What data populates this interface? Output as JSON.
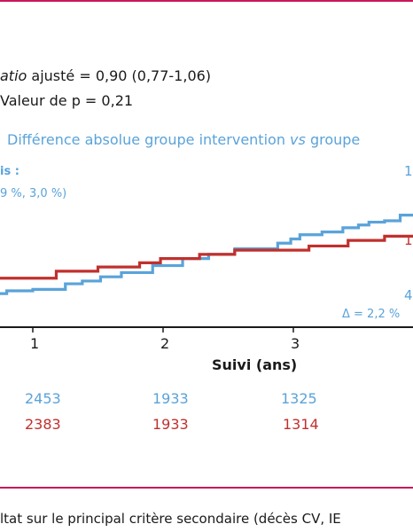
{
  "colors": {
    "frame": "#c8175d",
    "intervention": "#5aa3da",
    "control": "#c0302d",
    "axis": "#1a1a1a"
  },
  "stats": {
    "hr_prefix": "atio",
    "hr_rest": " ajusté = 0,90 (0,77-1,06)",
    "p_value": "Valeur de p = 0,21"
  },
  "subheading": "Différence absolue groupe intervention",
  "subheading_vs": "vs",
  "subheading_tail": " groupe",
  "annotations": {
    "top_left_1": "is :",
    "top_left_2": "9 %, 3,0 %)",
    "right_top_blue": "1",
    "right_mid_red": "1",
    "right_low_blue": "4",
    "delta": "Δ = 2,2 %"
  },
  "caption": "ltat sur le principal critère secondaire (décès CV, IE",
  "chart_data": {
    "type": "line",
    "xlabel": "Suivi (ans)",
    "ylabel": "",
    "xlim": [
      0.42,
      4.2
    ],
    "ylim": [
      0,
      1
    ],
    "x_ticks": [
      {
        "value": 1,
        "label": "1"
      },
      {
        "value": 2,
        "label": "2"
      },
      {
        "value": 3,
        "label": "3"
      }
    ],
    "series": [
      {
        "color": "#5aa3da",
        "step": true,
        "points": [
          [
            0.42,
            0.1
          ],
          [
            0.48,
            0.13
          ],
          [
            0.55,
            0.15
          ],
          [
            0.65,
            0.17
          ],
          [
            0.8,
            0.19
          ],
          [
            1.0,
            0.2
          ],
          [
            1.15,
            0.2
          ],
          [
            1.25,
            0.24
          ],
          [
            1.38,
            0.26
          ],
          [
            1.52,
            0.29
          ],
          [
            1.68,
            0.32
          ],
          [
            1.92,
            0.37
          ],
          [
            2.15,
            0.42
          ],
          [
            2.35,
            0.45
          ],
          [
            2.55,
            0.49
          ],
          [
            2.88,
            0.53
          ],
          [
            2.98,
            0.56
          ],
          [
            3.05,
            0.59
          ],
          [
            3.22,
            0.61
          ],
          [
            3.38,
            0.64
          ],
          [
            3.5,
            0.66
          ],
          [
            3.58,
            0.68
          ],
          [
            3.7,
            0.69
          ],
          [
            3.82,
            0.73
          ],
          [
            3.96,
            0.77
          ],
          [
            4.2,
            0.77
          ]
        ]
      },
      {
        "color": "#c0302d",
        "step": true,
        "points": [
          [
            0.42,
            0.16
          ],
          [
            0.52,
            0.2
          ],
          [
            0.68,
            0.28
          ],
          [
            1.0,
            0.28
          ],
          [
            1.18,
            0.33
          ],
          [
            1.5,
            0.36
          ],
          [
            1.82,
            0.39
          ],
          [
            1.98,
            0.42
          ],
          [
            2.28,
            0.45
          ],
          [
            2.55,
            0.48
          ],
          [
            3.05,
            0.48
          ],
          [
            3.12,
            0.51
          ],
          [
            3.42,
            0.55
          ],
          [
            3.7,
            0.58
          ],
          [
            4.0,
            0.62
          ],
          [
            4.2,
            0.62
          ]
        ]
      }
    ],
    "risk_table": {
      "intervention": [
        "2453",
        "1933",
        "1325"
      ],
      "control": [
        "2383",
        "1933",
        "1314"
      ]
    }
  }
}
